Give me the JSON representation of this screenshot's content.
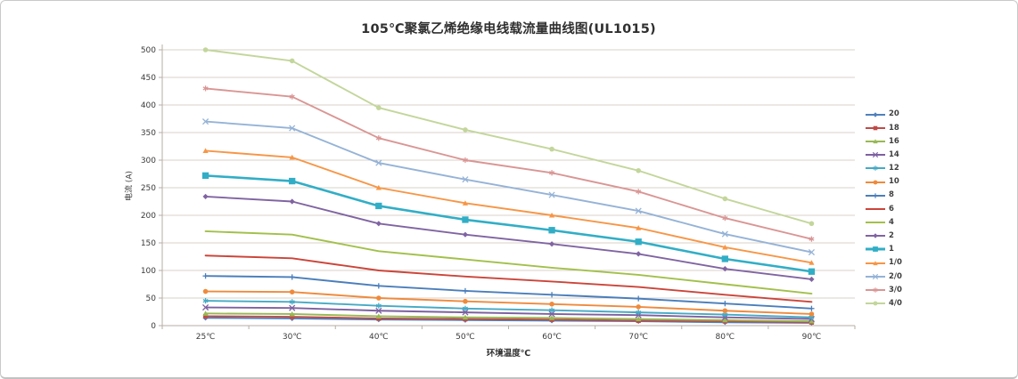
{
  "chart_data": {
    "type": "line",
    "title": "105℃聚氯乙烯绝缘电线载流量曲线图(UL1015)",
    "xlabel": "环境温度℃",
    "ylabel": "电流 (A)",
    "x_categories": [
      "25℃",
      "30℃",
      "40℃",
      "50℃",
      "60℃",
      "70℃",
      "80℃",
      "90℃"
    ],
    "ylim": [
      0,
      500
    ],
    "ytick_step": 50,
    "grid": "horizontal",
    "legend_position": "right",
    "series": [
      {
        "name": "20",
        "color": "#4F81BD",
        "marker": "diamond",
        "values": [
          14,
          13,
          11,
          10,
          9,
          8,
          6,
          5
        ]
      },
      {
        "name": "18",
        "color": "#BE4B48",
        "marker": "square",
        "values": [
          17,
          16,
          13,
          12,
          11,
          9,
          8,
          6
        ]
      },
      {
        "name": "16",
        "color": "#98B954",
        "marker": "triangle",
        "values": [
          22,
          21,
          17,
          15,
          14,
          12,
          10,
          8
        ]
      },
      {
        "name": "14",
        "color": "#7D60A0",
        "marker": "x",
        "values": [
          33,
          32,
          27,
          24,
          21,
          19,
          15,
          12
        ]
      },
      {
        "name": "12",
        "color": "#45AAC5",
        "marker": "asterisk",
        "values": [
          45,
          43,
          36,
          31,
          28,
          24,
          20,
          15
        ]
      },
      {
        "name": "10",
        "color": "#EF8A3C",
        "marker": "circle",
        "values": [
          62,
          61,
          50,
          44,
          39,
          34,
          27,
          21
        ]
      },
      {
        "name": "8",
        "color": "#4A7EBB",
        "marker": "plus",
        "values": [
          90,
          88,
          72,
          63,
          56,
          49,
          40,
          31
        ]
      },
      {
        "name": "6",
        "color": "#CC4439",
        "marker": "dash",
        "values": [
          127,
          122,
          100,
          89,
          80,
          70,
          56,
          43
        ]
      },
      {
        "name": "4",
        "color": "#A2C04A",
        "marker": "dash",
        "values": [
          171,
          165,
          135,
          120,
          105,
          92,
          75,
          58
        ]
      },
      {
        "name": "2",
        "color": "#8064A2",
        "marker": "diamond",
        "values": [
          234,
          225,
          185,
          165,
          148,
          130,
          103,
          84
        ]
      },
      {
        "name": "1",
        "color": "#31AEC6",
        "marker": "square",
        "size": "large",
        "values": [
          272,
          262,
          217,
          192,
          173,
          152,
          121,
          98
        ]
      },
      {
        "name": "1/0",
        "color": "#F79646",
        "marker": "triangle",
        "values": [
          317,
          305,
          250,
          222,
          200,
          177,
          142,
          114
        ]
      },
      {
        "name": "2/0",
        "color": "#95B3D7",
        "marker": "x",
        "values": [
          370,
          358,
          295,
          265,
          237,
          208,
          166,
          133
        ]
      },
      {
        "name": "3/0",
        "color": "#D99694",
        "marker": "asterisk",
        "values": [
          430,
          415,
          340,
          300,
          277,
          243,
          195,
          157
        ]
      },
      {
        "name": "4/0",
        "color": "#C3D69B",
        "marker": "circle",
        "values": [
          500,
          480,
          395,
          355,
          320,
          281,
          230,
          185
        ]
      }
    ]
  },
  "colors": {
    "grid": "#D8D2CA",
    "axis": "#B5AEA5",
    "tick_text": "#3a3a3a",
    "background": "#FFFFFF",
    "card_border": "#C9C9C9"
  }
}
